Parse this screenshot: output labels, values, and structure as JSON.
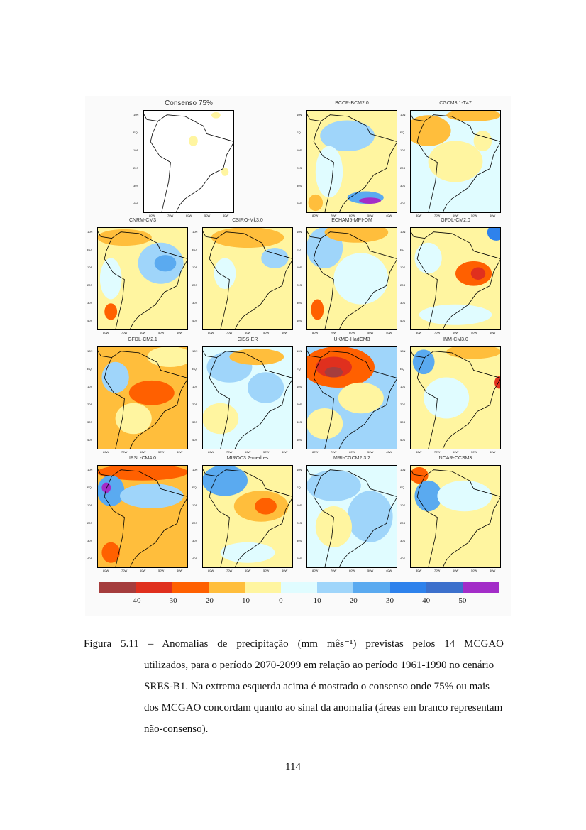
{
  "figure": {
    "panels": [
      {
        "title": "Consenso 75%"
      },
      {
        "title": "BCCR-BCM2.0"
      },
      {
        "title": "CGCM3.1-T47"
      },
      {
        "title": "CNRM-CM3"
      },
      {
        "title": "CSIRO-Mk3.0"
      },
      {
        "title": "ECHAM5-MPI-OM"
      },
      {
        "title": "GFDL-CM2.0"
      },
      {
        "title": "GFDL-CM2.1"
      },
      {
        "title": "GISS-ER"
      },
      {
        "title": "UKMO-HadCM3"
      },
      {
        "title": "INM-CM3.0"
      },
      {
        "title": "IPSL-CM4.0"
      },
      {
        "title": "MIROC3.2-medres"
      },
      {
        "title": "MRI-CGCM2.3.2"
      },
      {
        "title": "NCAR-CCSM3"
      }
    ],
    "lat_labels": [
      "10N",
      "EQ",
      "10S",
      "20S",
      "30S",
      "40S"
    ],
    "lon_labels": [
      "80W",
      "70W",
      "60W",
      "50W",
      "40W"
    ],
    "colorbar": {
      "colors": [
        "#a53d3d",
        "#e0301e",
        "#ff6000",
        "#ffbe3c",
        "#fff5a0",
        "#e0fcff",
        "#9fd5fa",
        "#5aaaf0",
        "#2e82ec",
        "#3c70cc",
        "#a32dc8"
      ],
      "labels": [
        "-40",
        "-30",
        "-20",
        "-10",
        "0",
        "10",
        "20",
        "30",
        "40",
        "50"
      ]
    }
  },
  "caption": {
    "line1": "Figura 5.11 – Anomalias de precipitação (mm mês⁻¹) previstas pelos 14 MCGAO",
    "rest": "utilizados, para o período 2070-2099 em relação ao período 1961-1990 no cenário SRES-B1. Na extrema esquerda acima é mostrado o consenso onde 75% ou mais dos MCGAO concordam quanto ao sinal da anomalia (áreas em branco representam não-consenso)."
  },
  "page_number": "114"
}
